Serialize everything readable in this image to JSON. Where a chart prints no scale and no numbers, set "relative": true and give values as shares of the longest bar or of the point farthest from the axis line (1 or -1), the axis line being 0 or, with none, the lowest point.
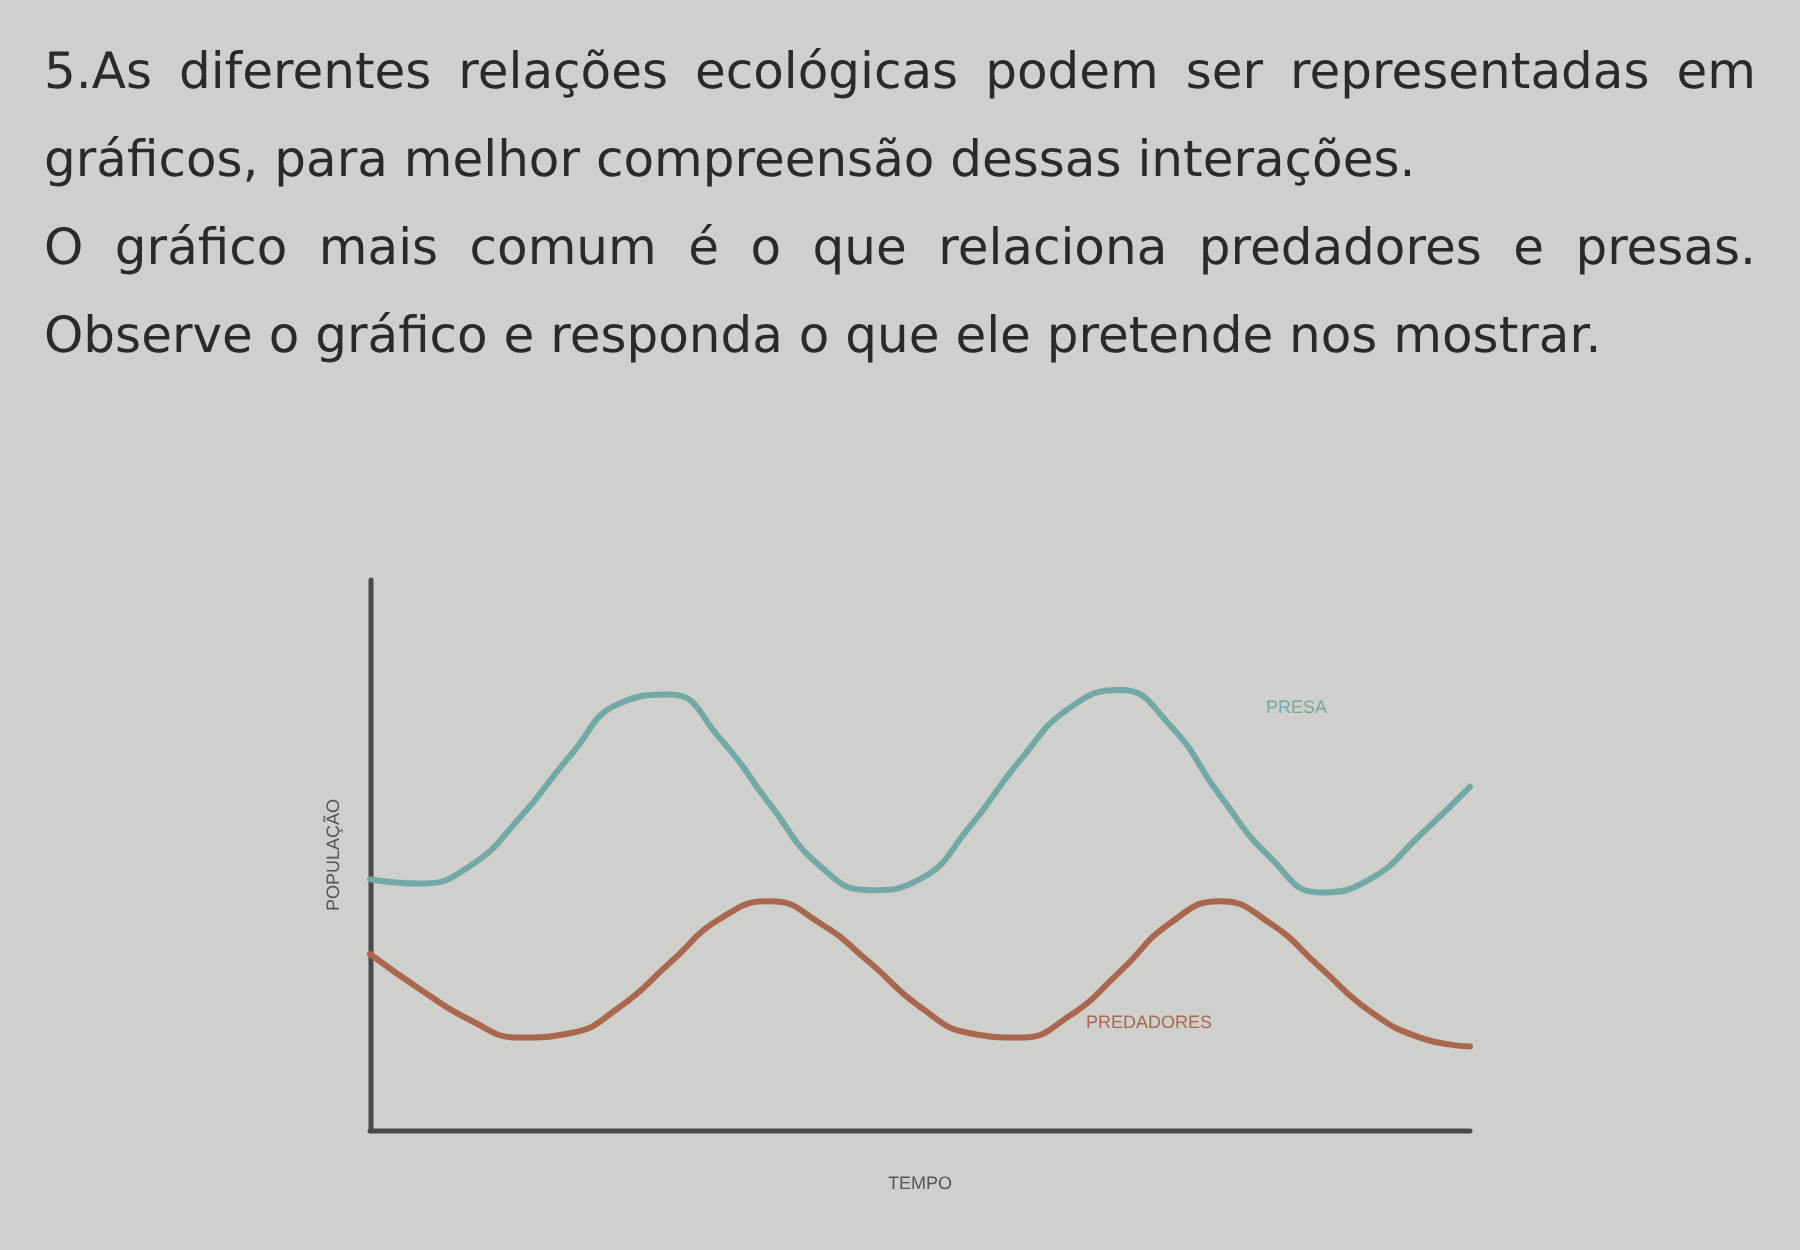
{
  "chart_data": {
    "type": "line",
    "relative": true,
    "title": "5.As diferentes relações ecológicas podem ser representadas em gráficos, para melhor compreensão dessas interações.",
    "subtitle": "O gráfico mais comum é o que relaciona predadores e presas. Observe o gráfico e responda o que ele pretende nos mostrar.",
    "xlabel": "TEMPO",
    "ylabel": "POPULAÇÃO",
    "marker": "none",
    "categories": [
      null,
      null,
      null,
      null,
      null,
      null,
      null,
      null,
      null,
      null,
      null,
      null,
      null,
      null,
      null,
      null,
      null,
      null,
      null,
      null,
      null,
      null,
      null
    ],
    "series": [
      {
        "name": "PRESA",
        "color": "#72a9a6",
        "values": [
          0.57,
          0.56,
          0.6,
          0.71,
          0.85,
          0.97,
          0.99,
          0.89,
          0.74,
          0.6,
          0.545,
          0.57,
          0.69,
          0.84,
          0.96,
          1,
          0.92,
          0.76,
          0.62,
          0.54,
          0.57,
          0.67,
          0.78
        ]
      },
      {
        "name": "PREDADORES",
        "color": "#a9674e",
        "values": [
          0.4,
          0.32,
          0.25,
          0.21,
          0.22,
          0.28,
          0.38,
          0.48,
          0.52,
          0.47,
          0.38,
          0.28,
          0.22,
          0.21,
          0.26,
          0.36,
          0.47,
          0.52,
          0.47,
          0.37,
          0.27,
          0.21,
          0.19
        ]
      }
    ]
  }
}
